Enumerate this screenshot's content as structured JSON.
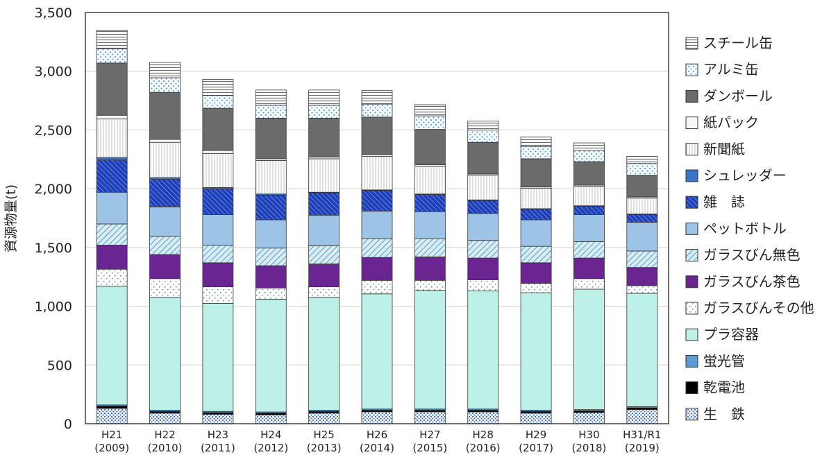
{
  "chart_data": {
    "type": "bar",
    "stacked": true,
    "ylabel": "資源物量(t)",
    "ylim": [
      0,
      3500
    ],
    "yticks": [
      0,
      500,
      1000,
      1500,
      2000,
      2500,
      3000,
      3500
    ],
    "ytick_labels": [
      "0",
      "500",
      "1,000",
      "1,500",
      "2,000",
      "2,500",
      "3,000",
      "3,500"
    ],
    "grid": true,
    "legend_position": "right",
    "categories": [
      {
        "era": "H21",
        "year": "(2009)"
      },
      {
        "era": "H22",
        "year": "(2010)"
      },
      {
        "era": "H23",
        "year": "(2011)"
      },
      {
        "era": "H24",
        "year": "(2012)"
      },
      {
        "era": "H25",
        "year": "(2013)"
      },
      {
        "era": "H26",
        "year": "(2014)"
      },
      {
        "era": "H27",
        "year": "(2015)"
      },
      {
        "era": "H28",
        "year": "(2016)"
      },
      {
        "era": "H29",
        "year": "(2017)"
      },
      {
        "era": "H30",
        "year": "(2018)"
      },
      {
        "era": "H31/R1",
        "year": "(2019)"
      }
    ],
    "series": [
      {
        "name": "生　鉄",
        "pattern": "dots-blue",
        "values": [
          130,
          90,
          80,
          75,
          90,
          100,
          100,
          100,
          90,
          95,
          120
        ]
      },
      {
        "name": "乾電池",
        "pattern": "solid-black",
        "values": [
          20,
          15,
          15,
          15,
          15,
          15,
          15,
          15,
          15,
          15,
          15
        ]
      },
      {
        "name": "蛍光管",
        "pattern": "solid-blue",
        "values": [
          10,
          10,
          10,
          10,
          10,
          10,
          10,
          10,
          10,
          10,
          10
        ]
      },
      {
        "name": "プラ容器",
        "pattern": "solid-mint",
        "values": [
          1010,
          960,
          920,
          960,
          960,
          980,
          1010,
          1005,
          1000,
          1025,
          965
        ]
      },
      {
        "name": "ガラスびんその他",
        "pattern": "dots-sparse",
        "values": [
          145,
          160,
          140,
          95,
          90,
          115,
          85,
          95,
          80,
          90,
          65
        ]
      },
      {
        "name": "ガラスびん茶色",
        "pattern": "solid-purple",
        "values": [
          205,
          205,
          205,
          190,
          195,
          195,
          200,
          185,
          175,
          175,
          155
        ]
      },
      {
        "name": "ガラスびん無色",
        "pattern": "hatch-blue",
        "values": [
          180,
          155,
          150,
          150,
          155,
          160,
          155,
          150,
          140,
          140,
          140
        ]
      },
      {
        "name": "ペットボトル",
        "pattern": "solid-lightblue",
        "values": [
          270,
          250,
          260,
          240,
          260,
          235,
          230,
          230,
          225,
          230,
          245
        ]
      },
      {
        "name": "雑　誌",
        "pattern": "hatch-darkblue",
        "values": [
          275,
          235,
          220,
          210,
          190,
          175,
          145,
          110,
          90,
          70,
          65
        ]
      },
      {
        "name": "シュレッダー",
        "pattern": "solid-midblue",
        "values": [
          20,
          15,
          10,
          10,
          5,
          5,
          5,
          5,
          5,
          5,
          5
        ]
      },
      {
        "name": "新聞紙",
        "pattern": "vlines",
        "values": [
          330,
          300,
          290,
          285,
          285,
          285,
          235,
          210,
          175,
          165,
          135
        ]
      },
      {
        "name": "紙パック",
        "pattern": "solid-white",
        "values": [
          30,
          25,
          25,
          15,
          15,
          15,
          15,
          10,
          10,
          10,
          10
        ]
      },
      {
        "name": "ダンボール",
        "pattern": "solid-darkgray",
        "values": [
          445,
          400,
          360,
          345,
          330,
          320,
          300,
          270,
          240,
          200,
          185
        ]
      },
      {
        "name": "アルミ缶",
        "pattern": "dots-cross",
        "values": [
          120,
          125,
          110,
          110,
          110,
          110,
          115,
          105,
          105,
          95,
          100
        ]
      },
      {
        "name": "スチール缶",
        "pattern": "hlines",
        "values": [
          160,
          130,
          135,
          130,
          130,
          115,
          95,
          75,
          80,
          65,
          60
        ]
      }
    ]
  }
}
